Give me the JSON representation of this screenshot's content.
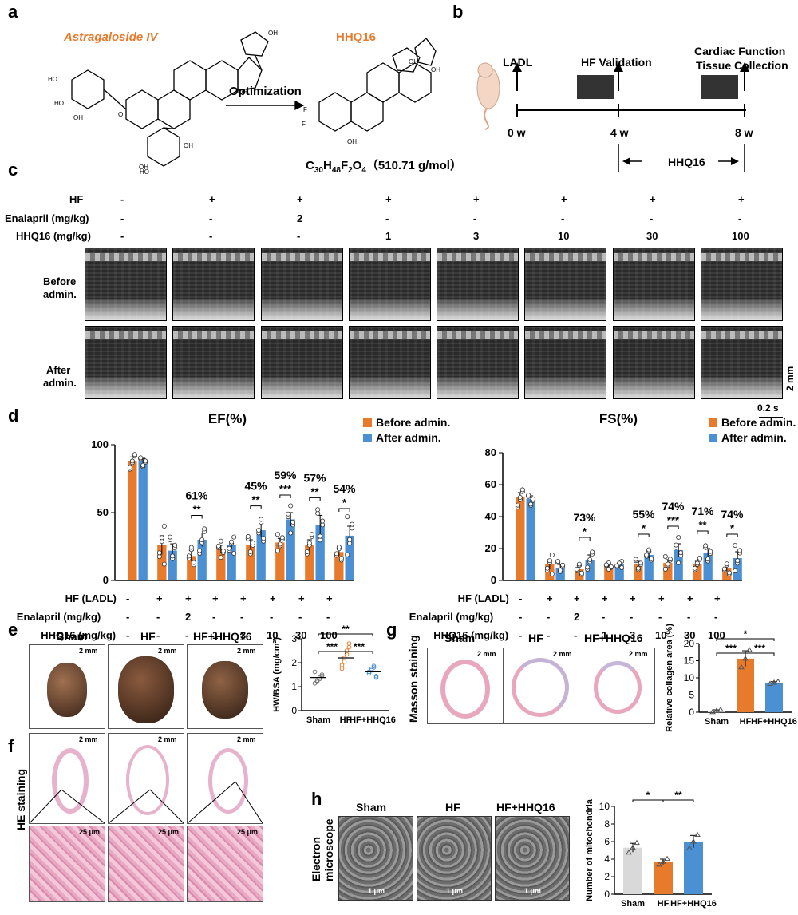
{
  "panels": {
    "a": "a",
    "b": "b",
    "c": "c",
    "d": "d",
    "e": "e",
    "f": "f",
    "g": "g",
    "h": "h"
  },
  "panel_a": {
    "compound1": "Astragaloside IV",
    "compound2": "HHQ16",
    "arrow_label": "Optimization",
    "formula_main": "C",
    "formula_sub1": "30",
    "formula_h": "H",
    "formula_sub2": "48",
    "formula_f": "F",
    "formula_sub3": "2",
    "formula_o": "O",
    "formula_sub4": "4",
    "formula_mw": "（510.71 g/mol）"
  },
  "panel_b": {
    "ladl": "LADL",
    "hf_validation": "HF Validation",
    "cardiac1": "Cardiac Function",
    "cardiac2": "Tissue Collection",
    "t0": "0 w",
    "t4": "4 w",
    "t8": "8 w",
    "treatment": "HHQ16"
  },
  "panel_c": {
    "row_labels": [
      "HF",
      "Enalapril (mg/kg)",
      "HHQ16 (mg/kg)"
    ],
    "hf": [
      "-",
      "+",
      "+",
      "+",
      "+",
      "+",
      "+",
      "+"
    ],
    "enalapril": [
      "-",
      "-",
      "2",
      "-",
      "-",
      "-",
      "-",
      "-"
    ],
    "hhq16": [
      "-",
      "-",
      "-",
      "1",
      "3",
      "10",
      "30",
      "100"
    ],
    "before": "Before",
    "before2": "admin.",
    "after": "After",
    "after2": "admin.",
    "scale_time": "0.2 s",
    "scale_dist": "2 mm"
  },
  "chart_data": [
    {
      "type": "bar",
      "title": "EF(%)",
      "ylim": [
        0,
        100
      ],
      "yticks": [
        0,
        50,
        100
      ],
      "series": [
        {
          "name": "Before admin.",
          "color": "#e87b2b",
          "values": [
            88,
            26,
            18,
            23,
            26,
            28,
            26,
            21
          ],
          "errors": [
            3,
            7,
            4,
            3,
            4,
            3,
            4,
            3
          ]
        },
        {
          "name": "After admin.",
          "color": "#4a90d3",
          "values": [
            88,
            22,
            30,
            26,
            37,
            45,
            41,
            33
          ],
          "errors": [
            2,
            5,
            5,
            3,
            5,
            5,
            7,
            7
          ]
        }
      ],
      "annotations": [
        {
          "index": 2,
          "pct": "61%",
          "sig": "**"
        },
        {
          "index": 4,
          "pct": "45%",
          "sig": "**"
        },
        {
          "index": 5,
          "pct": "59%",
          "sig": "***"
        },
        {
          "index": 6,
          "pct": "57%",
          "sig": "**"
        },
        {
          "index": 7,
          "pct": "54%",
          "sig": "*"
        }
      ],
      "row_labels": [
        "HF (LADL)",
        "Enalapril (mg/kg)",
        "HHQ16 (mg/kg)"
      ],
      "hf": [
        "-",
        "+",
        "+",
        "+",
        "+",
        "+",
        "+",
        "+"
      ],
      "enalapril": [
        "-",
        "-",
        "2",
        "-",
        "-",
        "-",
        "-",
        "-"
      ],
      "hhq16": [
        "-",
        "-",
        "-",
        "1",
        "3",
        "10",
        "30",
        "100"
      ]
    },
    {
      "type": "bar",
      "title": "FS(%)",
      "ylim": [
        0,
        80
      ],
      "yticks": [
        0,
        20,
        40,
        60,
        80
      ],
      "series": [
        {
          "name": "Before admin.",
          "color": "#e87b2b",
          "values": [
            52,
            10,
            7,
            9,
            10,
            11,
            10,
            8
          ],
          "errors": [
            3,
            3,
            2,
            1,
            2,
            2,
            2,
            2
          ]
        },
        {
          "name": "After admin.",
          "color": "#4a90d3",
          "values": [
            51,
            8,
            13,
            10,
            16,
            19,
            17,
            14
          ],
          "errors": [
            2,
            2,
            3,
            1,
            2,
            4,
            3,
            4
          ]
        }
      ],
      "annotations": [
        {
          "index": 2,
          "pct": "73%",
          "sig": "*"
        },
        {
          "index": 4,
          "pct": "55%",
          "sig": "*"
        },
        {
          "index": 5,
          "pct": "74%",
          "sig": "***"
        },
        {
          "index": 6,
          "pct": "71%",
          "sig": "**"
        },
        {
          "index": 7,
          "pct": "74%",
          "sig": "*"
        }
      ],
      "row_labels": [
        "HF (LADL)",
        "Enalapril (mg/kg)",
        "HHQ16 (mg/kg)"
      ],
      "hf": [
        "-",
        "+",
        "+",
        "+",
        "+",
        "+",
        "+",
        "+"
      ],
      "enalapril": [
        "-",
        "-",
        "2",
        "-",
        "-",
        "-",
        "-",
        "-"
      ],
      "hhq16": [
        "-",
        "-",
        "-",
        "1",
        "3",
        "10",
        "30",
        "100"
      ]
    },
    {
      "type": "scatter",
      "ylabel": "HW/BSA (mg/cm²)",
      "ylim": [
        0,
        3
      ],
      "yticks": [
        0,
        1,
        2,
        3
      ],
      "categories": [
        "Sham",
        "HF",
        "HF+HHQ16"
      ],
      "colors": [
        "#777777",
        "#e87b2b",
        "#4a90d3"
      ],
      "means": [
        1.38,
        2.2,
        1.62
      ],
      "sig": [
        {
          "from": 0,
          "to": 1,
          "label": "***"
        },
        {
          "from": 1,
          "to": 2,
          "label": "***"
        },
        {
          "from": 0,
          "to": 2,
          "label": "**"
        }
      ]
    },
    {
      "type": "bar",
      "ylabel": "Relative collagen area (%)",
      "ylim": [
        0,
        20
      ],
      "yticks": [
        0,
        5,
        10,
        15,
        20
      ],
      "categories": [
        "Sham",
        "HF",
        "HF+HHQ16"
      ],
      "colors": [
        "#d9d9d9",
        "#e87b2b",
        "#4a90d3"
      ],
      "values": [
        0.4,
        15.6,
        8.6
      ],
      "errors": [
        0.3,
        2.3,
        0.3
      ],
      "sig": [
        {
          "from": 0,
          "to": 1,
          "label": "***"
        },
        {
          "from": 1,
          "to": 2,
          "label": "***"
        },
        {
          "from": 0,
          "to": 2,
          "label": "*"
        }
      ]
    },
    {
      "type": "bar",
      "ylabel": "Number of mitochondria",
      "ylim": [
        0,
        10
      ],
      "yticks": [
        0,
        2,
        4,
        6,
        8,
        10
      ],
      "categories": [
        "Sham",
        "HF",
        "HF+HHQ16"
      ],
      "colors": [
        "#d9d9d9",
        "#e87b2b",
        "#4a90d3"
      ],
      "values": [
        5.3,
        3.7,
        6.0
      ],
      "errors": [
        0.5,
        0.3,
        0.7
      ],
      "sig": [
        {
          "from": 0,
          "to": 1,
          "label": "*"
        },
        {
          "from": 1,
          "to": 2,
          "label": "**"
        }
      ]
    }
  ],
  "panel_e": {
    "sham": "Sham",
    "hf": "HF",
    "hfhhq": "HF+HHQ16",
    "scale": "2 mm"
  },
  "panel_f": {
    "side": "HE staining",
    "scale_low": "2 mm",
    "scale_high": "25 μm"
  },
  "panel_g": {
    "side": "Masson staining",
    "sham": "Sham",
    "hf": "HF",
    "hfhhq": "HF+HHQ16",
    "scale": "2 mm"
  },
  "panel_h": {
    "side1": "Electron",
    "side2": "microscope",
    "sham": "Sham",
    "hf": "HF",
    "hfhhq": "HF+HHQ16",
    "scale": "1 μm"
  }
}
